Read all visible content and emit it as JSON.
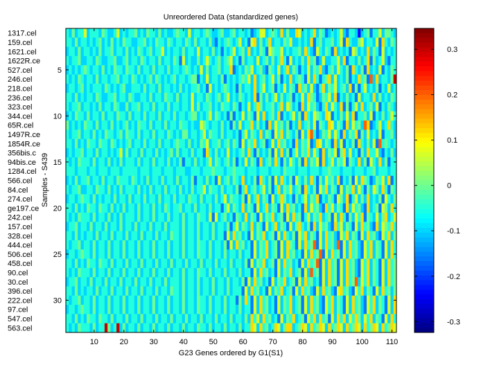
{
  "chart_data": {
    "type": "heatmap",
    "title": "Unreordered Data (standardized genes)",
    "xlabel": "G23 Genes ordered by G1(S1)",
    "ylabel": "Samples - S439",
    "row_labels": [
      "1317.cel",
      "159.cel",
      "1621.cel",
      "1622R.ce",
      "527.cel",
      "246.cel",
      "218.cel",
      "236.cel",
      "323.cel",
      "344.cel",
      "65R.cel",
      "1497R.ce",
      "1854R.ce",
      "356bis.c",
      "94bis.ce",
      "1284.cel",
      "566.cel",
      "84.cel",
      "274.cel",
      "ge197.ce",
      "242.cel",
      "157.cel",
      "328.cel",
      "444.cel",
      "506.cel",
      "458.cel",
      "90.cel",
      "30.cel",
      "396.cel",
      "222.cel",
      "97.cel",
      "547.cel",
      "563.cel"
    ],
    "x_ticks": [
      "10",
      "20",
      "30",
      "40",
      "50",
      "60",
      "70",
      "80",
      "90",
      "100",
      "110"
    ],
    "y_ticks": [
      "5",
      "10",
      "15",
      "20",
      "25",
      "30"
    ],
    "colorbar_ticks": [
      "0.3",
      "0.2",
      "0.1",
      "0",
      "-0.1",
      "-0.2",
      "-0.3"
    ],
    "colormap": "jet",
    "clim": [
      -0.324,
      0.346
    ],
    "n_columns": 111,
    "rows_quantized_0_to_9": [
      "435344634443543346343445343544353433454436344345433453345344342346634543735337634347354234346324431345244635543",
      "443534434345343534354433445343544354344354353443532434543463426735347344354633434372453445346274335634436274354",
      "344353443435344534435343543453446343443534436344353424346345373435426544634344537432643542734342653437354263434",
      "434453344354334453345344354344353443542634335346434534563425344363453534742634353745236334463724435347253463244",
      "343434543443534354435443534435344353443454343635344534472343546345325436347354243635473245364352743527343624354",
      "434354344353443445344354343453543434534434552436344352434345463734534635243734542637424573634352437452837344359",
      "344345343444354343453344435344353443435343445342634345434253443734634524363542745363247354634537252463435243634",
      "443534344354334453443543344353443544353443634435434534634354343725353463534524363754235463724353426344373534354",
      "434453443435344354335344534435344353443443635344534354435424363475344534736534273645324736437252463734536243543",
      "343544353443534435443534435344353443534434553434635434252436354263734537243463527436543762435363724453624353464",
      "534343544353443534345343544353443534435443433654344353425363447353427364535243734536254376354273645387234634743",
      "434453443534354434535443534435344354343553443463544353443424635437354264735435263784235463642735472536343624453",
      "443534354435443543434534435344353443454435343546344534535426354734523637453427354623763542736243527435362845434",
      "343445344353443434635344353443534345353443534427435343634345374253435263735246354736427354625736342537446324353",
      "434354443534435343534443534435344353435244353434635434535243635427345374253643527354627346354625437352643735244",
      "444344434434443444344444344434443444344433444344454443445444344434443444354443444344434454443444344434453444344",
      "343534453443534435444354343534435344353443524435342634535437343527435263743526435374253645372435263754235463724",
      "434453344354435343534443534353443534435343534463544353443524734534635247354634527435264735426354736425365374254",
      "344345443534344353443534435344353443534435443534435346354435263473542634753425346354724354265372463537343526435",
      "443534354435443534353443534435343543445344353443534424635437354263473542637453427364532746354273645327345265374",
      "434354443534435343534443534435344353443534435443626345342543735426354734526374524635473452637425364725436357346",
      "344534435344353443534435344353443534443534435344353443524635437354263473542635743527364532746354263745327365474",
      "443534344353443534435344353443534435443534435344353442637453426354734526374352647354263745326473542637453264735",
      "434453443534435344353443534435344353443534435443534435263745342635473452637542637458263745382637453264735426374",
      "344345443534435344353443534435344353443534435443534435344353442635473452637453426374582637452637453264735426374",
      "443534354435443534435344353443534435344353443534435344353443526354734526374534263745826374526374532647354263745",
      "434354443534435344353443534435344353443534435443534435344353442637453426354734526384526374526374532647354263745",
      "344534435344353443534435344353443534443534435344353443534435263745342635473452637453426374526374583647354263745",
      "443534344353443534435344353443534435443534435344353443534442637453426354734526374532637453267453264735426374535",
      "434453443534435344353443534435344353443534435443534435344253742637453426354734526374532647354263745326473542637",
      "344345443534435344353443534435344353443534435443534435344353442637453426354734526374532647354263745326473542637",
      "443534354435443534435344353443534435344353443534435344353443537463745342635473452647374526374736475364735426374",
      "434354443534495349353443534435344353443534435443534435344353447637453476357734576374576374576374576374576374576"
    ]
  }
}
